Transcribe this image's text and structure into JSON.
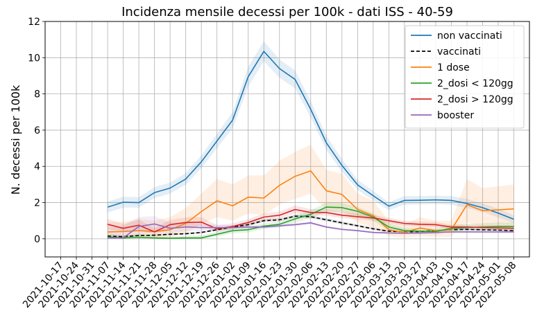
{
  "chart_data": {
    "type": "line",
    "title": "Incidenza mensile decessi per 100k - dati ISS - 40-59",
    "xlabel": "",
    "ylabel": "N. decessi per 100k",
    "ylim": [
      -1,
      12
    ],
    "yticks": [
      0,
      2,
      4,
      6,
      8,
      10,
      12
    ],
    "grid": true,
    "legend_position": "top-right",
    "x": [
      "2021-10-17",
      "2021-10-24",
      "2021-10-31",
      "2021-11-07",
      "2021-11-14",
      "2021-11-21",
      "2021-11-28",
      "2021-12-05",
      "2021-12-12",
      "2021-12-19",
      "2021-12-26",
      "2022-01-02",
      "2022-01-09",
      "2022-01-16",
      "2022-01-23",
      "2022-01-30",
      "2022-02-06",
      "2022-02-13",
      "2022-02-20",
      "2022-02-27",
      "2022-03-06",
      "2022-03-13",
      "2022-03-20",
      "2022-03-27",
      "2022-04-03",
      "2022-04-10",
      "2022-04-17",
      "2022-04-24",
      "2022-05-01",
      "2022-05-08"
    ],
    "series": [
      {
        "name": "non vaccinati",
        "color": "#1f77b4",
        "dash": false,
        "values": [
          null,
          null,
          null,
          1.75,
          2.02,
          2.0,
          2.55,
          2.8,
          3.3,
          4.25,
          5.4,
          6.55,
          8.95,
          10.35,
          9.4,
          8.8,
          7.15,
          5.3,
          4.05,
          2.98,
          2.38,
          1.8,
          2.12,
          2.13,
          2.15,
          2.12,
          1.95,
          1.72,
          1.42,
          1.08
        ],
        "lower": [
          null,
          null,
          null,
          1.45,
          1.72,
          1.72,
          2.25,
          2.5,
          2.98,
          3.9,
          5.0,
          6.1,
          8.4,
          9.8,
          8.9,
          8.3,
          6.7,
          4.9,
          3.7,
          2.7,
          2.12,
          1.58,
          1.88,
          1.9,
          1.92,
          1.88,
          1.7,
          1.48,
          1.18,
          0.86
        ],
        "upper": [
          null,
          null,
          null,
          2.05,
          2.32,
          2.3,
          2.85,
          3.1,
          3.62,
          4.6,
          5.8,
          7.0,
          9.5,
          10.9,
          9.9,
          9.3,
          7.6,
          5.7,
          4.4,
          3.26,
          2.64,
          2.02,
          2.36,
          2.36,
          2.38,
          2.36,
          2.2,
          1.96,
          1.66,
          1.3
        ]
      },
      {
        "name": "vaccinati",
        "color": "#000000",
        "dash": true,
        "values": [
          null,
          null,
          null,
          0.15,
          0.12,
          0.18,
          0.2,
          0.25,
          0.28,
          0.35,
          0.5,
          0.65,
          0.78,
          1.0,
          1.05,
          1.25,
          1.22,
          1.05,
          0.88,
          0.72,
          0.55,
          0.42,
          0.38,
          0.4,
          0.45,
          0.5,
          0.52,
          0.5,
          0.48,
          0.45
        ],
        "lower": [
          null,
          null,
          null,
          0.1,
          0.08,
          0.13,
          0.15,
          0.2,
          0.23,
          0.3,
          0.44,
          0.58,
          0.7,
          0.92,
          0.97,
          1.16,
          1.13,
          0.97,
          0.8,
          0.65,
          0.49,
          0.37,
          0.33,
          0.35,
          0.4,
          0.45,
          0.47,
          0.45,
          0.43,
          0.4
        ],
        "upper": [
          null,
          null,
          null,
          0.2,
          0.16,
          0.23,
          0.25,
          0.3,
          0.33,
          0.4,
          0.56,
          0.72,
          0.86,
          1.08,
          1.13,
          1.34,
          1.31,
          1.13,
          0.96,
          0.79,
          0.61,
          0.47,
          0.43,
          0.45,
          0.5,
          0.55,
          0.57,
          0.55,
          0.53,
          0.5
        ]
      },
      {
        "name": "1 dose",
        "color": "#ff7f0e",
        "dash": false,
        "values": [
          null,
          null,
          null,
          0.38,
          0.4,
          0.45,
          0.4,
          0.5,
          0.85,
          1.5,
          2.1,
          1.82,
          2.3,
          2.25,
          2.95,
          3.45,
          3.75,
          2.65,
          2.45,
          1.62,
          1.28,
          0.5,
          0.35,
          0.6,
          0.45,
          0.5,
          1.88,
          1.55,
          1.6,
          1.65
        ],
        "lower": [
          null,
          null,
          null,
          0.05,
          0.05,
          0.05,
          0.05,
          0.1,
          0.3,
          0.8,
          1.2,
          1.0,
          1.4,
          1.3,
          1.9,
          2.2,
          2.5,
          1.6,
          1.5,
          0.9,
          0.6,
          0.15,
          0.05,
          0.15,
          0.1,
          0.12,
          0.9,
          0.65,
          0.6,
          0.6
        ],
        "upper": [
          null,
          null,
          null,
          0.9,
          0.95,
          1.1,
          1.0,
          1.2,
          1.7,
          2.5,
          3.3,
          3.0,
          3.5,
          3.5,
          4.3,
          4.8,
          5.2,
          3.8,
          3.6,
          2.5,
          2.1,
          1.0,
          0.8,
          1.2,
          1.0,
          1.0,
          3.3,
          2.8,
          2.9,
          3.0
        ]
      },
      {
        "name": "2_dosi < 120gg",
        "color": "#2ca02c",
        "dash": false,
        "values": [
          null,
          null,
          null,
          0.1,
          0.05,
          0.08,
          0.05,
          0.03,
          0.05,
          0.05,
          0.25,
          0.45,
          0.5,
          0.7,
          0.8,
          1.1,
          1.35,
          1.75,
          1.72,
          1.52,
          1.2,
          0.65,
          0.45,
          0.42,
          0.4,
          0.58,
          0.62,
          0.65,
          0.68,
          0.68
        ],
        "lower": [
          null,
          null,
          null,
          0.0,
          0.0,
          0.0,
          0.0,
          0.0,
          0.0,
          0.0,
          0.12,
          0.3,
          0.35,
          0.55,
          0.62,
          0.9,
          1.12,
          1.5,
          1.47,
          1.28,
          0.98,
          0.45,
          0.3,
          0.26,
          0.24,
          0.4,
          0.42,
          0.44,
          0.46,
          0.46
        ],
        "upper": [
          null,
          null,
          null,
          0.3,
          0.2,
          0.25,
          0.2,
          0.12,
          0.18,
          0.18,
          0.4,
          0.6,
          0.65,
          0.85,
          0.98,
          1.3,
          1.58,
          2.0,
          1.97,
          1.76,
          1.42,
          0.85,
          0.6,
          0.58,
          0.56,
          0.76,
          0.82,
          0.86,
          0.9,
          0.9
        ]
      },
      {
        "name": "2_dosi > 120gg",
        "color": "#d62728",
        "dash": false,
        "values": [
          null,
          null,
          null,
          0.8,
          0.58,
          0.75,
          0.38,
          0.78,
          0.9,
          0.92,
          0.55,
          0.68,
          0.9,
          1.2,
          1.3,
          1.62,
          1.45,
          1.45,
          1.3,
          1.22,
          1.15,
          1.0,
          0.85,
          0.8,
          0.78,
          0.65,
          0.65,
          0.62,
          0.6,
          0.58
        ],
        "lower": [
          null,
          null,
          null,
          0.55,
          0.38,
          0.5,
          0.22,
          0.55,
          0.65,
          0.68,
          0.38,
          0.52,
          0.74,
          1.02,
          1.12,
          1.42,
          1.28,
          1.28,
          1.14,
          1.06,
          1.0,
          0.86,
          0.72,
          0.68,
          0.66,
          0.54,
          0.54,
          0.52,
          0.5,
          0.48
        ],
        "upper": [
          null,
          null,
          null,
          1.1,
          0.82,
          1.05,
          0.58,
          1.05,
          1.18,
          1.2,
          0.75,
          0.86,
          1.08,
          1.4,
          1.5,
          1.84,
          1.64,
          1.64,
          1.48,
          1.4,
          1.32,
          1.16,
          1.0,
          0.94,
          0.92,
          0.78,
          0.78,
          0.74,
          0.72,
          0.7
        ]
      },
      {
        "name": "booster",
        "color": "#9467bd",
        "dash": false,
        "values": [
          null,
          null,
          null,
          0.05,
          0.05,
          0.68,
          0.82,
          0.58,
          0.65,
          0.62,
          0.62,
          0.62,
          0.65,
          0.65,
          0.72,
          0.78,
          0.88,
          0.65,
          0.52,
          0.45,
          0.35,
          0.32,
          0.3,
          0.32,
          0.35,
          0.38,
          0.38,
          0.38,
          0.38,
          0.38
        ],
        "lower": [
          null,
          null,
          null,
          0.0,
          0.0,
          0.2,
          0.4,
          0.3,
          0.42,
          0.45,
          0.48,
          0.5,
          0.55,
          0.57,
          0.64,
          0.7,
          0.8,
          0.58,
          0.46,
          0.4,
          0.3,
          0.28,
          0.26,
          0.28,
          0.31,
          0.34,
          0.34,
          0.34,
          0.34,
          0.34
        ],
        "upper": [
          null,
          null,
          null,
          0.6,
          0.7,
          1.2,
          1.25,
          0.9,
          0.9,
          0.8,
          0.78,
          0.75,
          0.76,
          0.74,
          0.8,
          0.86,
          0.96,
          0.72,
          0.58,
          0.5,
          0.4,
          0.36,
          0.34,
          0.36,
          0.39,
          0.42,
          0.42,
          0.42,
          0.42,
          0.42
        ]
      }
    ]
  }
}
